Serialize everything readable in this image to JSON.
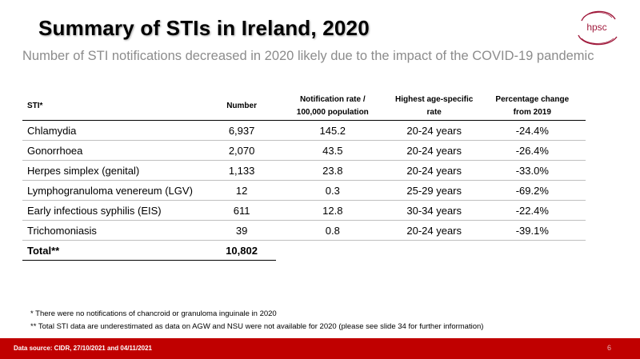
{
  "title": "Summary of STIs in Ireland, 2020",
  "logo_text": "hpsc",
  "subtitle": "Number of STI notifications decreased in 2020 likely due to the impact of the COVID-19 pandemic",
  "table": {
    "headers": {
      "sti": "STI*",
      "number": "Number",
      "rate_line1": "Notification rate /",
      "rate_line2": "100,000 population",
      "age_line1": "Highest age-specific",
      "age_line2": "rate",
      "change_line1": "Percentage change",
      "change_line2": "from 2019"
    },
    "rows": [
      {
        "sti": "Chlamydia",
        "number": "6,937",
        "rate": "145.2",
        "age": "20-24 years",
        "change": "-24.4%"
      },
      {
        "sti": "Gonorrhoea",
        "number": "2,070",
        "rate": "43.5",
        "age": "20-24 years",
        "change": "-26.4%"
      },
      {
        "sti": "Herpes simplex (genital)",
        "number": "1,133",
        "rate": "23.8",
        "age": "20-24 years",
        "change": "-33.0%"
      },
      {
        "sti": "Lymphogranuloma venereum (LGV)",
        "number": "12",
        "rate": "0.3",
        "age": "25-29 years",
        "change": "-69.2%"
      },
      {
        "sti": "Early infectious syphilis (EIS)",
        "number": "611",
        "rate": "12.8",
        "age": "30-34 years",
        "change": "-22.4%"
      },
      {
        "sti": "Trichomoniasis",
        "number": "39",
        "rate": "0.8",
        "age": "20-24 years",
        "change": "-39.1%"
      }
    ],
    "total": {
      "label": "Total**",
      "number": "10,802"
    }
  },
  "footnotes": [
    "* There were no notifications of chancroid or granuloma inguinale in 2020",
    "** Total STI data are underestimated as data on AGW and NSU were not available for 2020 (please see slide 34 for further information)"
  ],
  "footer": {
    "source": "Data source: CIDR, 27/10/2021 and 04/11/2021",
    "page_number": "6"
  },
  "colors": {
    "accent": "#c00000",
    "logo": "#a01a3c",
    "subtitle": "#8c8c8c"
  }
}
